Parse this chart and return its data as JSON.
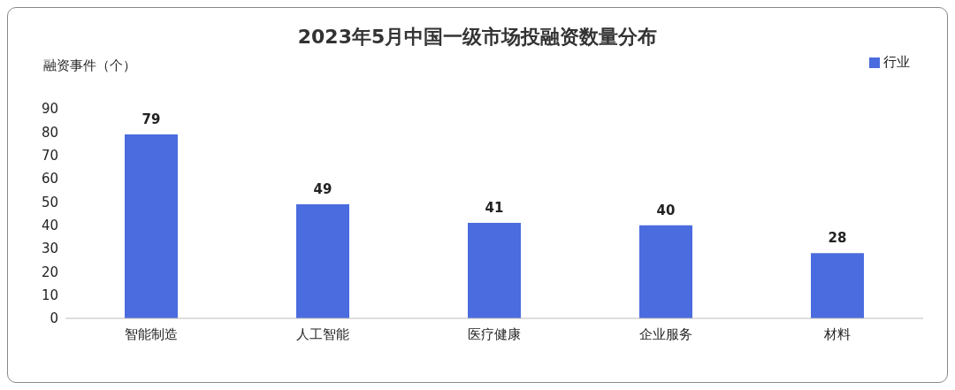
{
  "chart_data": {
    "type": "bar",
    "title": "2023年5月中国一级市场投融资数量分布",
    "ylabel": "融资事件（个）",
    "categories": [
      "智能制造",
      "人工智能",
      "医疗健康",
      "企业服务",
      "材料"
    ],
    "series": [
      {
        "name": "行业",
        "color": "#4a6cdf",
        "values": [
          79,
          49,
          41,
          40,
          28
        ]
      }
    ],
    "ylim": [
      0,
      90
    ],
    "yticks": [
      0,
      10,
      20,
      30,
      40,
      50,
      60,
      70,
      80,
      90
    ],
    "grid": false,
    "legend": "top right",
    "data_labels": true
  }
}
